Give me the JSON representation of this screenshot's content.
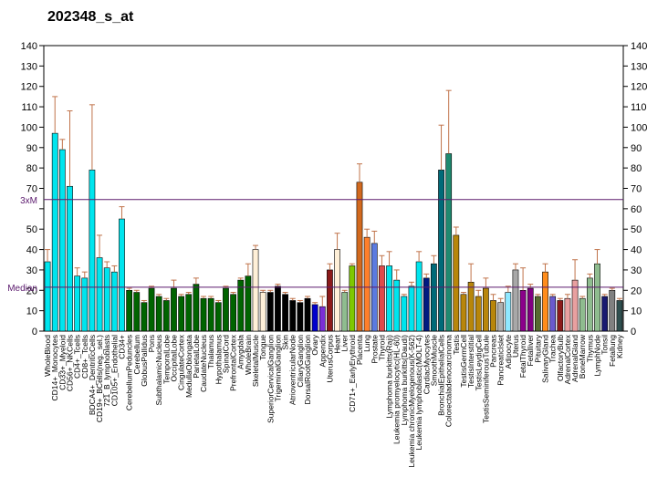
{
  "chart_data": {
    "type": "bar",
    "title": "202348_s_at",
    "ylim": [
      0,
      140
    ],
    "grid": false,
    "reference_lines": [
      {
        "label": "3xM",
        "value": 64.5,
        "color": "#5b1a6e"
      },
      {
        "label": "Median",
        "value": 21.5,
        "color": "#5b1a6e"
      }
    ],
    "categories": [
      "WholeBlood",
      "CD14+_Monocytes",
      "CD33+_Myeloid",
      "CD56+_NKCells",
      "CD4+_Tcells",
      "CD8+_Tcells",
      "BDCA4+_DentriticCells",
      "CD19+_BCells(neg._sel.)",
      "721_B_lymphoblasts",
      "CD105+_Endothelial",
      "CD34+",
      "CerebellumPeduncles",
      "Cerebellum",
      "GlobusPallidus",
      "Pons",
      "SubthalamicNucleus",
      "TemporalLobe",
      "OccipitalLobe",
      "CingulateCortex",
      "MedullaOblongata",
      "ParietalLobe",
      "CaudateNucleus",
      "Thalamus",
      "Hypothalamus",
      "SpinalCord",
      "PrefrontalCortex",
      "Amygdala",
      "WholeBrain",
      "SkeletalMuscle",
      "Tongue",
      "SuperiorCervicalGanglion",
      "TrigeminalGanglion",
      "Skin",
      "AtrioventricularNode",
      "CiliaryGanglion",
      "DorsalRootGanglion",
      "Ovary",
      "Appendix",
      "UterusCorpus",
      "Heart",
      "Liver",
      "CD71+_EarlyErythroid",
      "Placenta",
      "Lung",
      "Prostate",
      "Thyroid",
      "Lymphoma burkitts(Raji)",
      "Leukemia promyelocytic(HL-60)",
      "Lymphoma burkitts(Daudi)",
      "Leukemia chronicMyelogenous(K-562)",
      "Leukemia lymphoblastic(MOLT-4)",
      "CardiacMyocytes",
      "SmoothMuscle",
      "BronchialEpithelialCells",
      "Colorectaladenocarcinoma",
      "Testis",
      "TestisGermCell",
      "TestisInterstitial",
      "TestisLeydigCell",
      "TestisSeminiferousTubule",
      "Pancreas",
      "PancreaticIslet",
      "Adipocyte",
      "Uterus",
      "FetalThyroid",
      "Fetalliver",
      "Pituitary",
      "SalivaryGland",
      "Trachea",
      "OlfactoryBulb",
      "AdrenalCortex",
      "AdrenalGland",
      "BoneMarrow",
      "Thymus",
      "LymphNode",
      "Tonsil",
      "Fetallung",
      "Kidney"
    ],
    "visible_labels": [
      "WholeBlood",
      "CD14+_Monocytes",
      "CD33+_Myeloid",
      "CD56+_NKCells",
      "CD4+_Tcells",
      "CD8+_Tcells",
      "BDCA4+_DentriticCells",
      "CD19+_BCells(neg._sel.)",
      "721_B_lymphoblasts",
      "CD105+_Endothelial",
      "CD34+",
      "CerebellumPeduncles",
      "Cerebellum",
      "GlobusPallidus",
      "Pons",
      "SubthalamicNucleus",
      "TemporalLobe",
      "OccipitalLobe",
      "CingulateCortex",
      "MedullaOblongata",
      "ParietalLobe",
      "CaudateNucleus",
      "Thalamus",
      "Hypothalamus",
      "SpinalCord",
      "PrefrontalCortex",
      "Amygdala",
      "WholeBrain",
      "SkeletalMuscle",
      "Tongue",
      "SuperiorCervicalGanglion",
      "TrigeminalGanglion",
      "Skin",
      "AtrioventricularNode",
      "CiliaryGanglion",
      "DorsalRootGanglion",
      "Ovary",
      "Appendix",
      "UterusCorpus",
      "Heart",
      "Liver",
      "CD71+_EarlyErythroid",
      "Placenta",
      "Lung",
      "Prostate",
      "Thyroid",
      "Lymphoma burkitts(Raji)",
      "Leukemia promyelocytic(HL-60)",
      "Lymphoma burkitts(Daudi)",
      "Leukemia chronicMyelogenous(K-562)",
      "Leukemia lymphoblastic(MOLT-4)",
      "CardiacMyocytes",
      "SmoothMuscle",
      "BronchialEpithelialCells",
      "Colorectaladenocarcinoma",
      "Testis",
      "TestisGermCell",
      "TestisInterstitial",
      "TestisLeydigCell",
      "TestisSeminiferousTubule",
      "Pancreas",
      "PancreaticIslet",
      "Adipocyte",
      "Uterus",
      "FetalThyroid",
      "Fetalliver",
      "Pituitary",
      "SalivaryGland",
      "Trachea",
      "OlfactoryBulb",
      "AdrenalCortex",
      "AdrenalGland",
      "BoneMarrow",
      "Thymus",
      "LymphNode",
      "Tonsil",
      "Fetallung",
      "Kidney"
    ],
    "values": [
      34,
      97,
      89,
      71,
      27,
      26,
      79,
      36,
      31,
      29,
      55,
      20,
      19,
      14,
      21,
      17,
      15,
      21,
      17,
      18,
      23,
      16,
      16,
      14,
      21,
      18,
      25,
      27,
      40,
      19,
      19,
      22,
      18,
      15,
      14,
      16,
      13,
      12,
      30,
      40,
      19,
      32,
      73,
      46,
      43,
      32,
      32,
      25,
      17,
      22,
      34,
      26,
      33,
      79,
      87,
      47,
      18,
      24,
      17,
      21,
      15,
      14,
      19,
      30,
      20,
      21,
      17,
      29,
      17,
      15,
      16,
      25,
      16,
      26,
      33,
      17,
      20,
      15
    ],
    "errors": [
      6,
      18,
      5,
      37,
      4,
      3,
      32,
      11,
      3,
      3,
      6,
      1,
      1,
      1,
      1,
      1,
      1,
      4,
      1,
      1,
      3,
      1,
      1,
      1,
      1,
      1,
      1,
      6,
      2,
      1,
      1,
      1,
      1,
      1,
      1,
      1,
      1,
      5,
      3,
      8,
      1,
      1,
      9,
      4,
      6,
      5,
      7,
      5,
      1,
      2,
      5,
      2,
      4,
      22,
      31,
      4,
      1,
      9,
      3,
      5,
      3,
      2,
      3,
      3,
      11,
      2,
      1,
      4,
      1,
      1,
      2,
      10,
      1,
      2,
      7,
      1,
      1,
      1
    ],
    "colors": [
      "#00e5ee",
      "#00e5ee",
      "#00e5ee",
      "#00e5ee",
      "#00e5ee",
      "#00e5ee",
      "#00e5ee",
      "#00e5ee",
      "#00e5ee",
      "#00e5ee",
      "#00e5ee",
      "#006400",
      "#006400",
      "#006400",
      "#006400",
      "#006400",
      "#006400",
      "#006400",
      "#006400",
      "#006400",
      "#006400",
      "#006400",
      "#006400",
      "#006400",
      "#006400",
      "#006400",
      "#006400",
      "#006400",
      "#fff0d8",
      "#fff0d8",
      "#000000",
      "#000000",
      "#000000",
      "#000000",
      "#000000",
      "#000000",
      "#0000cd",
      "#7b2fd6",
      "#8b1a1a",
      "#fff0d8",
      "#8fbc8f",
      "#7ec800",
      "#d2691e",
      "#ff7f2a",
      "#5b7be0",
      "#e04a4a",
      "#00e5ee",
      "#00e5ee",
      "#00e5ee",
      "#00e5ee",
      "#00e5ee",
      "#001a80",
      "#006a78",
      "#006a78",
      "#1f8a70",
      "#b8860b",
      "#b8860b",
      "#b8860b",
      "#b8860b",
      "#b8860b",
      "#b8860b",
      "#b0b0b0",
      "#8fe8ff",
      "#a8a8a8",
      "#8b008b",
      "#800080",
      "#556b2f",
      "#ff8c1a",
      "#6a5acd",
      "#8b1a1a",
      "#e8a0a0",
      "#e8a0a0",
      "#8fbc8f",
      "#8fbc8f",
      "#8fbc8f",
      "#191970",
      "#808080",
      "#2f4f4f"
    ],
    "left_axis_ticks": [
      0,
      10,
      20,
      30,
      40,
      50,
      60,
      70,
      80,
      90,
      100,
      110,
      120,
      130,
      140
    ],
    "left_axis_labels": [
      "0",
      "10",
      "20",
      "30",
      "40",
      "50",
      "",
      "70",
      "80",
      "90",
      "100",
      "110",
      "120",
      "130",
      "140"
    ],
    "right_axis_ticks": [
      0,
      10,
      20,
      30,
      40,
      50,
      60,
      70,
      80,
      90,
      100,
      110,
      120,
      130,
      140
    ],
    "right_axis_labels": [
      "0",
      "10",
      "20",
      "30",
      "40",
      "50",
      "60",
      "70",
      "80",
      "90",
      "100",
      "110",
      "120",
      "130",
      "140"
    ]
  }
}
